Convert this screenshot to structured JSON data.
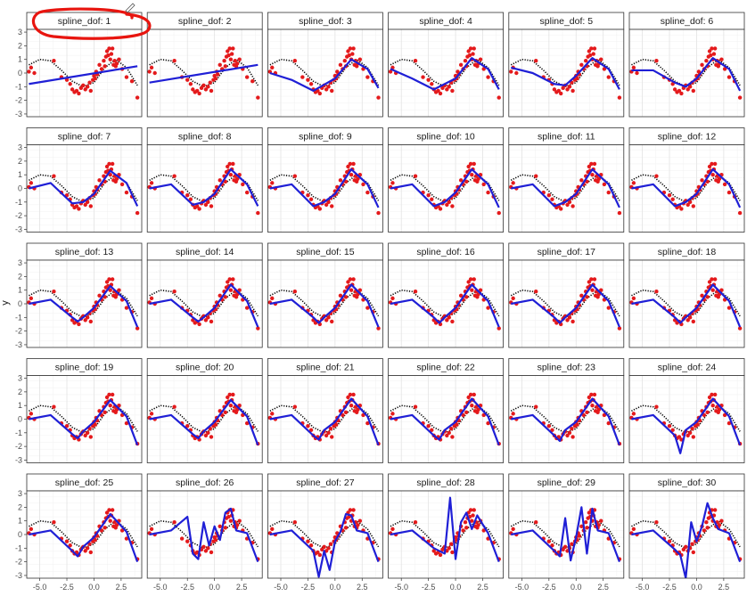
{
  "chart_data": {
    "type": "line",
    "layout": "faceted grid, 5 rows x 6 columns",
    "facet_variable": "spline_dof",
    "facets": [
      "spline_dof: 1",
      "spline_dof: 2",
      "spline_dof: 3",
      "spline_dof: 4",
      "spline_dof: 5",
      "spline_dof: 6",
      "spline_dof: 7",
      "spline_dof: 8",
      "spline_dof: 9",
      "spline_dof: 10",
      "spline_dof: 11",
      "spline_dof: 12",
      "spline_dof: 13",
      "spline_dof: 14",
      "spline_dof: 15",
      "spline_dof: 16",
      "spline_dof: 17",
      "spline_dof: 18",
      "spline_dof: 19",
      "spline_dof: 20",
      "spline_dof: 21",
      "spline_dof: 22",
      "spline_dof: 23",
      "spline_dof: 24",
      "spline_dof: 25",
      "spline_dof: 26",
      "spline_dof: 27",
      "spline_dof: 28",
      "spline_dof: 29",
      "spline_dof: 30"
    ],
    "ylabel": "y",
    "xlabel": "",
    "xlim": [
      -6.2,
      4.4
    ],
    "ylim": [
      -3.2,
      3.2
    ],
    "x_ticks": [
      -5.0,
      -2.5,
      0.0,
      2.5
    ],
    "x_tick_labels": [
      "-5.0",
      "-2.5",
      "0.0",
      "2.5"
    ],
    "y_ticks": [
      -3,
      -2,
      -1,
      0,
      1,
      2,
      3
    ],
    "y_tick_labels": [
      "-3",
      "-2",
      "-1",
      "0",
      "1",
      "2",
      "3"
    ],
    "grid": true,
    "legend": "none",
    "series_colors": {
      "true_function": "#000000",
      "observations": "#e41a1c",
      "spline_fit": "#1f1fd6"
    },
    "true_function": {
      "x": [
        -6.0,
        -5.0,
        -4.0,
        -3.0,
        -2.0,
        -1.0,
        0.0,
        1.0,
        2.0,
        3.0,
        4.0
      ],
      "y": [
        0.6,
        1.0,
        0.9,
        0.2,
        -0.6,
        -1.0,
        -0.7,
        0.4,
        1.0,
        0.4,
        -0.9
      ]
    },
    "observations": {
      "x": [
        -6.0,
        -5.8,
        -5.5,
        -3.7,
        -3.0,
        -2.5,
        -2.2,
        -2.0,
        -1.8,
        -1.6,
        -1.4,
        -1.2,
        -1.0,
        -0.8,
        -0.6,
        -0.4,
        -0.3,
        -0.1,
        0.0,
        0.1,
        0.2,
        0.3,
        0.5,
        0.7,
        0.9,
        1.0,
        1.1,
        1.2,
        1.3,
        1.4,
        1.5,
        1.6,
        1.7,
        1.8,
        1.9,
        2.0,
        2.1,
        2.3,
        2.6,
        3.0,
        3.5,
        4.0
      ],
      "y": [
        0.1,
        0.4,
        0.0,
        0.9,
        -0.3,
        -0.5,
        -0.8,
        -1.2,
        -1.4,
        -1.3,
        -1.5,
        -1.1,
        -0.9,
        -1.2,
        -1.0,
        -0.7,
        -1.3,
        -0.5,
        -0.2,
        -0.4,
        0.1,
        -0.1,
        0.6,
        0.3,
        0.9,
        0.5,
        1.2,
        1.6,
        1.3,
        1.8,
        1.0,
        1.4,
        1.8,
        0.6,
        0.9,
        0.5,
        0.7,
        1.0,
        0.3,
        -0.3,
        -0.6,
        -1.8
      ]
    },
    "spline_fits": [
      {
        "dof": 1,
        "x": [
          -6.0,
          4.0
        ],
        "y": [
          -0.8,
          0.5
        ]
      },
      {
        "dof": 2,
        "x": [
          -6.0,
          4.0
        ],
        "y": [
          -0.7,
          0.6
        ]
      },
      {
        "dof": 3,
        "x": [
          -6.0,
          -4.0,
          -2.0,
          0.0,
          1.5,
          3.0,
          4.0
        ],
        "y": [
          0.0,
          -0.5,
          -1.3,
          -0.4,
          1.0,
          0.3,
          -1.1
        ]
      },
      {
        "dof": 4,
        "x": [
          -6.0,
          -4.0,
          -2.0,
          0.0,
          1.5,
          3.0,
          4.0
        ],
        "y": [
          0.3,
          -0.4,
          -1.2,
          -0.4,
          1.1,
          0.3,
          -1.2
        ]
      },
      {
        "dof": 5,
        "x": [
          -6.0,
          -4.0,
          -2.0,
          -1.0,
          0.0,
          1.5,
          3.0,
          4.0
        ],
        "y": [
          0.4,
          0.0,
          -0.8,
          -0.9,
          -0.2,
          1.1,
          0.3,
          -1.2
        ]
      },
      {
        "dof": 6,
        "x": [
          -6.0,
          -4.0,
          -2.0,
          -1.0,
          0.0,
          1.5,
          3.0,
          4.0
        ],
        "y": [
          0.2,
          0.2,
          -0.7,
          -1.0,
          -0.4,
          1.1,
          0.3,
          -1.3
        ]
      },
      {
        "dof": 7,
        "x": [
          -6.0,
          -4.0,
          -2.0,
          -1.0,
          0.0,
          1.5,
          3.0,
          4.0
        ],
        "y": [
          0.0,
          0.4,
          -1.1,
          -1.0,
          -0.4,
          1.3,
          0.4,
          -1.3
        ]
      },
      {
        "dof": 8,
        "x": [
          -6.0,
          -4.0,
          -2.0,
          -1.0,
          0.0,
          1.5,
          3.0,
          4.0
        ],
        "y": [
          0.0,
          0.3,
          -1.2,
          -1.0,
          -0.4,
          1.4,
          0.3,
          -1.3
        ]
      },
      {
        "dof": 9,
        "x": [
          -6.0,
          -4.0,
          -2.0,
          -1.0,
          0.0,
          1.5,
          3.0,
          4.0
        ],
        "y": [
          0.0,
          0.3,
          -1.3,
          -1.0,
          -0.4,
          1.4,
          0.3,
          -1.4
        ]
      },
      {
        "dof": 10,
        "x": [
          -6.0,
          -4.0,
          -2.0,
          -1.0,
          0.0,
          1.5,
          3.0,
          4.0
        ],
        "y": [
          0.0,
          0.3,
          -1.3,
          -1.0,
          -0.3,
          1.4,
          0.3,
          -1.4
        ]
      },
      {
        "dof": 11,
        "x": [
          -6.0,
          -4.0,
          -2.0,
          -1.0,
          0.0,
          1.5,
          3.0,
          4.0
        ],
        "y": [
          0.0,
          0.3,
          -1.3,
          -1.0,
          -0.4,
          1.4,
          0.3,
          -1.4
        ]
      },
      {
        "dof": 12,
        "x": [
          -6.0,
          -4.0,
          -2.0,
          -1.0,
          0.0,
          1.5,
          3.0,
          4.0
        ],
        "y": [
          0.0,
          0.3,
          -1.3,
          -1.0,
          -0.4,
          1.4,
          0.3,
          -1.4
        ]
      },
      {
        "dof": 13,
        "x": [
          -6.0,
          -4.0,
          -2.0,
          -1.5,
          -1.0,
          0.0,
          1.5,
          3.0,
          4.0
        ],
        "y": [
          0.0,
          0.3,
          -1.0,
          -1.3,
          -1.0,
          -0.3,
          1.3,
          0.2,
          -1.7
        ]
      },
      {
        "dof": 14,
        "x": [
          -6.0,
          -4.0,
          -2.0,
          -1.5,
          -1.0,
          0.0,
          1.5,
          3.0,
          4.0
        ],
        "y": [
          0.0,
          0.3,
          -1.0,
          -1.3,
          -1.0,
          -0.3,
          1.4,
          0.2,
          -1.7
        ]
      },
      {
        "dof": 15,
        "x": [
          -6.0,
          -4.0,
          -2.0,
          -1.5,
          -1.0,
          0.0,
          1.5,
          3.0,
          4.0
        ],
        "y": [
          0.0,
          0.3,
          -1.0,
          -1.4,
          -1.0,
          -0.3,
          1.4,
          0.2,
          -1.7
        ]
      },
      {
        "dof": 16,
        "x": [
          -6.0,
          -4.0,
          -2.0,
          -1.5,
          -1.0,
          0.0,
          1.5,
          3.0,
          4.0
        ],
        "y": [
          0.0,
          0.3,
          -1.0,
          -1.4,
          -1.0,
          -0.3,
          1.4,
          0.2,
          -1.7
        ]
      },
      {
        "dof": 17,
        "x": [
          -6.0,
          -4.0,
          -2.0,
          -1.5,
          -1.0,
          0.0,
          1.5,
          3.0,
          4.0
        ],
        "y": [
          0.0,
          0.3,
          -1.0,
          -1.4,
          -1.0,
          -0.3,
          1.4,
          0.2,
          -1.7
        ]
      },
      {
        "dof": 18,
        "x": [
          -6.0,
          -4.0,
          -2.0,
          -1.5,
          -1.0,
          0.0,
          1.5,
          3.0,
          4.0
        ],
        "y": [
          0.0,
          0.3,
          -1.0,
          -1.4,
          -1.0,
          -0.3,
          1.4,
          0.2,
          -1.7
        ]
      },
      {
        "dof": 19,
        "x": [
          -6.0,
          -4.0,
          -2.0,
          -1.5,
          -1.0,
          0.0,
          1.5,
          3.0,
          4.0
        ],
        "y": [
          0.0,
          0.3,
          -1.1,
          -1.4,
          -0.9,
          -0.2,
          1.4,
          0.2,
          -1.9
        ]
      },
      {
        "dof": 20,
        "x": [
          -6.0,
          -4.0,
          -2.0,
          -1.5,
          -1.0,
          0.0,
          1.5,
          3.0,
          4.0
        ],
        "y": [
          0.0,
          0.3,
          -1.1,
          -1.4,
          -0.9,
          -0.2,
          1.4,
          0.2,
          -1.9
        ]
      },
      {
        "dof": 21,
        "x": [
          -6.0,
          -4.0,
          -2.0,
          -1.5,
          -1.0,
          0.0,
          1.5,
          3.0,
          4.0
        ],
        "y": [
          0.0,
          0.3,
          -1.2,
          -1.5,
          -0.8,
          -0.2,
          1.5,
          0.2,
          -1.9
        ]
      },
      {
        "dof": 22,
        "x": [
          -6.0,
          -4.0,
          -2.0,
          -1.5,
          -1.0,
          0.0,
          1.5,
          3.0,
          4.0
        ],
        "y": [
          0.0,
          0.3,
          -1.2,
          -1.5,
          -0.8,
          -0.2,
          1.5,
          0.2,
          -1.9
        ]
      },
      {
        "dof": 23,
        "x": [
          -6.0,
          -4.0,
          -2.0,
          -1.5,
          -1.0,
          0.0,
          1.5,
          3.0,
          4.0
        ],
        "y": [
          0.0,
          0.3,
          -1.2,
          -1.6,
          -0.8,
          -0.2,
          1.5,
          0.2,
          -1.9
        ]
      },
      {
        "dof": 24,
        "x": [
          -6.0,
          -4.0,
          -2.0,
          -1.5,
          -1.0,
          0.0,
          1.5,
          3.0,
          4.0
        ],
        "y": [
          0.0,
          0.3,
          -1.2,
          -2.5,
          -0.8,
          -0.2,
          1.5,
          0.2,
          -1.9
        ]
      },
      {
        "dof": 25,
        "x": [
          -6.0,
          -4.0,
          -2.0,
          -1.5,
          -1.0,
          0.0,
          1.5,
          3.0,
          4.0
        ],
        "y": [
          0.0,
          0.3,
          -1.2,
          -1.6,
          -0.9,
          -0.2,
          1.5,
          0.2,
          -2.0
        ]
      },
      {
        "dof": 26,
        "x": [
          -6.0,
          -4.0,
          -2.5,
          -2.0,
          -1.5,
          -1.0,
          -0.5,
          0.0,
          0.5,
          1.0,
          1.5,
          2.0,
          3.0,
          4.0
        ],
        "y": [
          0.0,
          0.3,
          1.3,
          -1.4,
          -1.8,
          0.9,
          -0.8,
          0.6,
          -0.4,
          1.6,
          1.9,
          0.3,
          0.1,
          -2.0
        ]
      },
      {
        "dof": 27,
        "x": [
          -6.0,
          -4.0,
          -2.0,
          -1.5,
          -1.0,
          -0.5,
          0.0,
          0.5,
          1.0,
          1.5,
          2.0,
          3.0,
          4.0
        ],
        "y": [
          0.0,
          0.3,
          -1.2,
          -3.1,
          -1.2,
          -2.6,
          -0.5,
          0.2,
          1.5,
          1.4,
          0.3,
          0.1,
          -2.0
        ]
      },
      {
        "dof": 28,
        "x": [
          -6.0,
          -4.0,
          -2.0,
          -1.0,
          -0.5,
          0.0,
          0.5,
          1.0,
          1.5,
          2.0,
          3.0,
          4.0
        ],
        "y": [
          0.0,
          0.3,
          -1.0,
          -1.4,
          2.7,
          -1.8,
          0.9,
          1.6,
          0.4,
          1.4,
          0.1,
          -2.0
        ]
      },
      {
        "dof": 29,
        "x": [
          -6.0,
          -4.0,
          -2.0,
          -1.5,
          -1.0,
          -0.5,
          0.0,
          0.5,
          1.0,
          1.5,
          2.0,
          3.0,
          4.0
        ],
        "y": [
          0.0,
          0.3,
          -1.2,
          -1.6,
          1.2,
          -1.9,
          -0.2,
          2.0,
          -1.4,
          1.9,
          0.3,
          0.1,
          -2.0
        ]
      },
      {
        "dof": 30,
        "x": [
          -6.0,
          -4.0,
          -2.0,
          -1.5,
          -1.0,
          -0.5,
          0.0,
          0.5,
          1.0,
          1.5,
          2.0,
          3.0,
          4.0
        ],
        "y": [
          0.0,
          0.3,
          -1.1,
          -1.5,
          -3.2,
          0.9,
          -0.5,
          0.6,
          2.3,
          1.2,
          0.4,
          0.1,
          -2.0
        ]
      }
    ]
  },
  "annotation": {
    "highlight_color": "#e8150f",
    "highlighted_facet_index": 0
  }
}
